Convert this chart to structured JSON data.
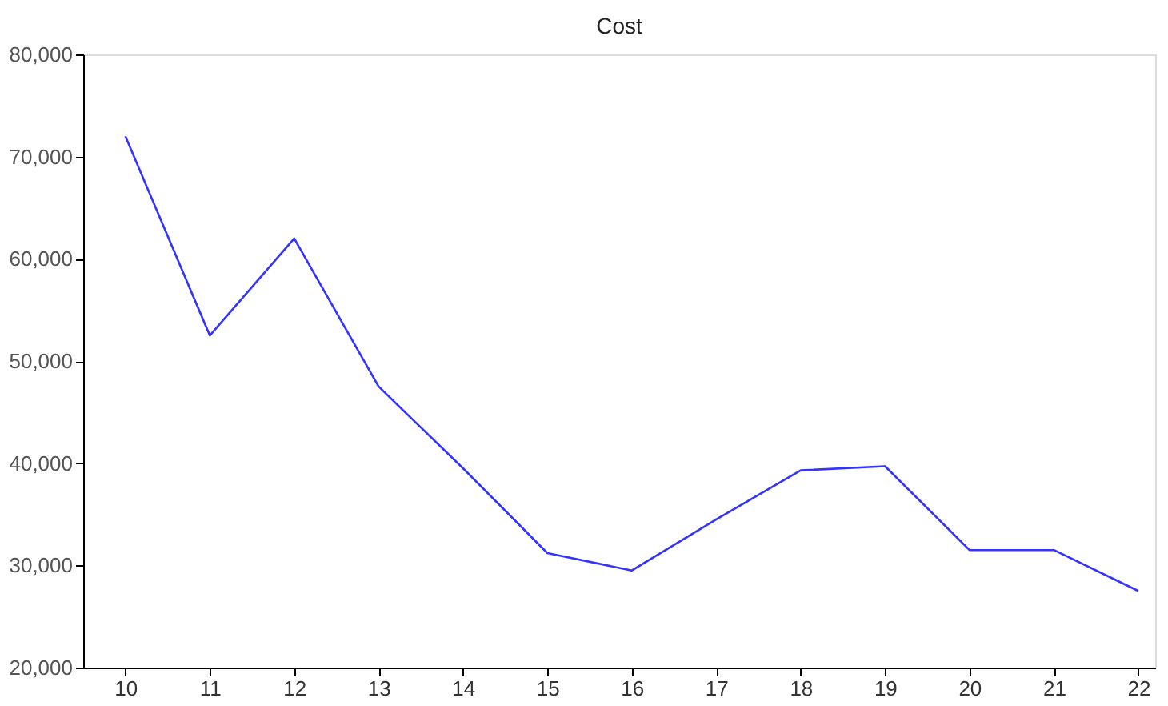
{
  "chart_data": {
    "type": "line",
    "title": "Cost",
    "x": [
      10,
      11,
      12,
      13,
      14,
      15,
      16,
      17,
      18,
      19,
      20,
      21,
      22
    ],
    "series": [
      {
        "color": "#3333ff",
        "values": [
          72000,
          52500,
          62000,
          47500,
          39500,
          31200,
          29500,
          34500,
          39300,
          39700,
          31500,
          31500,
          27500
        ]
      }
    ],
    "xlim": [
      9.5,
      22.2
    ],
    "xticks": [
      10,
      11,
      12,
      13,
      14,
      15,
      16,
      17,
      18,
      19,
      20,
      21,
      22
    ],
    "ylim": [
      20000,
      80000
    ],
    "yticks": [
      {
        "value": 20000,
        "label": "20,000"
      },
      {
        "value": 30000,
        "label": "30,000"
      },
      {
        "value": 40000,
        "label": "40,000"
      },
      {
        "value": 50000,
        "label": "50,000"
      },
      {
        "value": 60000,
        "label": "60,000"
      },
      {
        "value": 70000,
        "label": "70,000"
      },
      {
        "value": 80000,
        "label": "80,000"
      }
    ],
    "grid": false,
    "legend": false,
    "marker": "none",
    "line_style": "solid"
  }
}
